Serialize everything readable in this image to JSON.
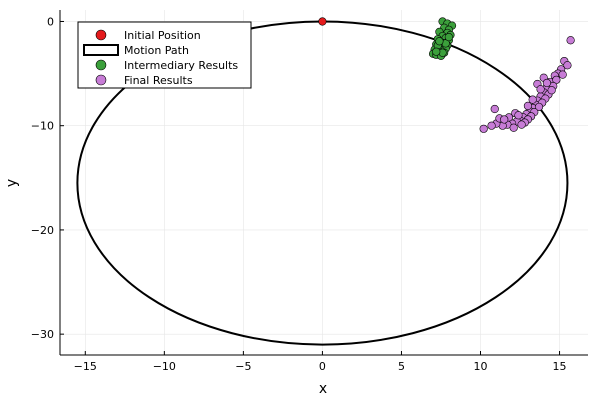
{
  "chart_data": {
    "type": "scatter",
    "xlabel": "x",
    "ylabel": "y",
    "xlim": [
      -16.6,
      16.8
    ],
    "ylim": [
      -32,
      1.1
    ],
    "xticks": [
      -15,
      -10,
      -5,
      0,
      5,
      10,
      15
    ],
    "yticks": [
      0,
      -10,
      -20,
      -30
    ],
    "grid": true,
    "legend_position": "top-left",
    "colors": {
      "initial": "#e41a1c",
      "path": "#000000",
      "intermediate": "#3ba03b",
      "final": "#c77cd6"
    },
    "series": [
      {
        "name": "Initial Position",
        "kind": "scatter",
        "points": [
          [
            0,
            0
          ]
        ]
      },
      {
        "name": "Motion Path",
        "kind": "ellipse",
        "center": [
          0,
          -15.5
        ],
        "rx": 15.5,
        "ry": 15.5
      },
      {
        "name": "Intermediary Results",
        "kind": "scatter",
        "points": [
          [
            7.6,
            0.0
          ],
          [
            7.9,
            -0.2
          ],
          [
            8.2,
            -0.4
          ],
          [
            7.7,
            -0.6
          ],
          [
            8.0,
            -0.8
          ],
          [
            7.4,
            -1.0
          ],
          [
            7.9,
            -1.1
          ],
          [
            8.1,
            -1.3
          ],
          [
            7.6,
            -1.4
          ],
          [
            7.8,
            -1.6
          ],
          [
            7.3,
            -1.7
          ],
          [
            8.0,
            -1.8
          ],
          [
            7.5,
            -2.0
          ],
          [
            7.7,
            -2.1
          ],
          [
            7.2,
            -2.2
          ],
          [
            7.9,
            -2.3
          ],
          [
            7.6,
            -2.4
          ],
          [
            7.3,
            -2.5
          ],
          [
            7.8,
            -2.6
          ],
          [
            7.1,
            -2.7
          ],
          [
            7.5,
            -2.8
          ],
          [
            7.4,
            -2.9
          ],
          [
            7.7,
            -3.0
          ],
          [
            7.0,
            -3.1
          ],
          [
            7.2,
            -3.2
          ],
          [
            7.5,
            -3.3
          ],
          [
            7.6,
            -3.0
          ],
          [
            7.3,
            -2.3
          ],
          [
            7.8,
            -2.1
          ],
          [
            8.0,
            -1.5
          ],
          [
            7.4,
            -1.9
          ],
          [
            7.2,
            -2.9
          ]
        ]
      },
      {
        "name": "Final Results",
        "kind": "scatter",
        "points": [
          [
            15.7,
            -1.8
          ],
          [
            15.3,
            -3.8
          ],
          [
            15.5,
            -4.2
          ],
          [
            15.1,
            -4.6
          ],
          [
            14.9,
            -5.0
          ],
          [
            14.7,
            -5.2
          ],
          [
            15.2,
            -5.1
          ],
          [
            14.4,
            -5.8
          ],
          [
            14.8,
            -5.6
          ],
          [
            14.2,
            -6.3
          ],
          [
            14.6,
            -6.2
          ],
          [
            14.0,
            -6.8
          ],
          [
            14.3,
            -7.0
          ],
          [
            13.8,
            -7.2
          ],
          [
            14.5,
            -6.6
          ],
          [
            13.6,
            -7.6
          ],
          [
            14.1,
            -7.4
          ],
          [
            13.5,
            -8.0
          ],
          [
            13.9,
            -7.8
          ],
          [
            13.3,
            -8.3
          ],
          [
            13.7,
            -8.2
          ],
          [
            13.1,
            -8.6
          ],
          [
            13.4,
            -8.7
          ],
          [
            12.9,
            -8.9
          ],
          [
            13.2,
            -9.1
          ],
          [
            12.7,
            -9.2
          ],
          [
            13.0,
            -9.4
          ],
          [
            12.5,
            -9.5
          ],
          [
            12.8,
            -9.7
          ],
          [
            12.3,
            -9.6
          ],
          [
            12.0,
            -9.8
          ],
          [
            12.6,
            -9.9
          ],
          [
            11.7,
            -9.9
          ],
          [
            11.4,
            -10.0
          ],
          [
            11.0,
            -9.8
          ],
          [
            10.7,
            -10.0
          ],
          [
            10.2,
            -10.3
          ],
          [
            11.2,
            -9.3
          ],
          [
            10.9,
            -8.4
          ],
          [
            11.8,
            -9.2
          ],
          [
            12.2,
            -8.8
          ],
          [
            13.6,
            -6.0
          ],
          [
            14.0,
            -5.4
          ],
          [
            13.0,
            -8.1
          ],
          [
            12.4,
            -9.0
          ],
          [
            13.8,
            -6.5
          ],
          [
            14.2,
            -5.9
          ],
          [
            11.5,
            -9.4
          ],
          [
            12.1,
            -10.2
          ],
          [
            13.3,
            -7.5
          ]
        ]
      }
    ]
  }
}
